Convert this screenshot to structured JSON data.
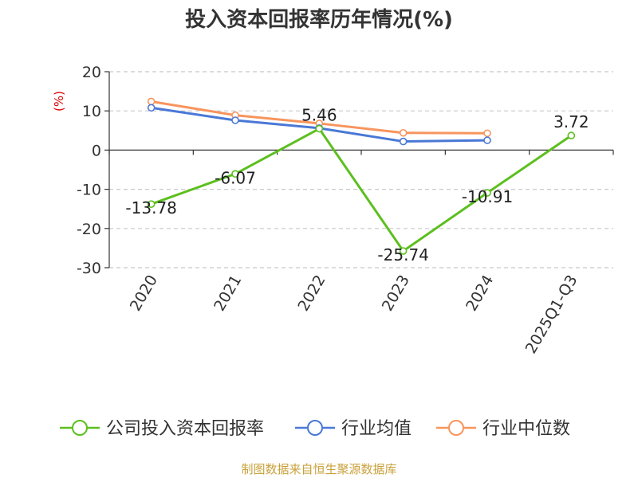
{
  "chart_data": {
    "type": "line",
    "title": "投入资本回报率历年情况(%)",
    "ylabel": "(%)",
    "categories": [
      "2020",
      "2021",
      "2022",
      "2023",
      "2024",
      "2025Q1-Q3"
    ],
    "ylim": [
      -30,
      20
    ],
    "yticks": [
      20,
      10,
      0,
      -10,
      -20,
      -30
    ],
    "grid": true,
    "legend_position": "bottom",
    "series": [
      {
        "name": "公司投入资本回报率",
        "color": "#5cbf1e",
        "values": [
          -13.78,
          -6.07,
          5.46,
          -25.74,
          -10.91,
          3.72
        ],
        "labels": [
          "-13.78",
          "-6.07",
          "5.46",
          "-25.74",
          "-10.91",
          "3.72"
        ]
      },
      {
        "name": "行业均值",
        "color": "#4a78d6",
        "values": [
          10.8,
          7.6,
          5.6,
          2.2,
          2.5,
          null
        ]
      },
      {
        "name": "行业中位数",
        "color": "#f7955e",
        "values": [
          12.4,
          8.9,
          6.8,
          4.4,
          4.3,
          null
        ]
      }
    ]
  },
  "source": "制图数据来自恒生聚源数据库"
}
